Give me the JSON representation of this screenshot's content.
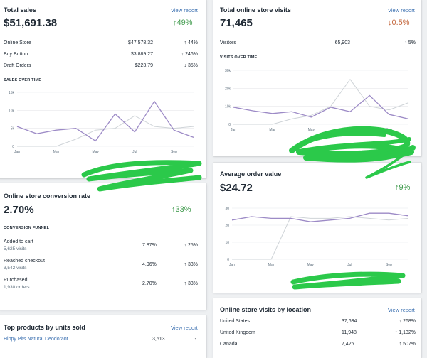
{
  "colors": {
    "primary": "#9c8ac6",
    "comparison": "#cfd4d8",
    "positive": "#3f9a4c",
    "negative": "#c4673d",
    "link": "#3a6fb0"
  },
  "total_sales": {
    "title": "Total sales",
    "link": "View report",
    "value": "$51,691.38",
    "delta": "↑49%",
    "rows": [
      {
        "label": "Online Store",
        "value": "$47,578.32",
        "delta": "↑ 44%"
      },
      {
        "label": "Buy Button",
        "value": "$3,889.27",
        "delta": "↑ 246%"
      },
      {
        "label": "Draft Orders",
        "value": "$223.79",
        "delta": "↓ 35%"
      }
    ],
    "chart_label": "SALES OVER TIME"
  },
  "online_visits": {
    "title": "Total online store visits",
    "link": "View report",
    "value": "71,465",
    "delta": "↓0.5%",
    "rows": [
      {
        "label": "Visitors",
        "value": "65,903",
        "delta": "↑ 5%"
      }
    ],
    "chart_label": "VISITS OVER TIME"
  },
  "conversion": {
    "title": "Online store conversion rate",
    "value": "2.70%",
    "delta": "↑33%",
    "funnel_label": "CONVERSION FUNNEL",
    "rows": [
      {
        "label": "Added to cart",
        "sub": "5,625 visits",
        "value": "7.87%",
        "delta": "↑ 25%"
      },
      {
        "label": "Reached checkout",
        "sub": "3,542 visits",
        "value": "4.96%",
        "delta": "↑ 33%"
      },
      {
        "label": "Purchased",
        "sub": "1,930 orders",
        "value": "2.70%",
        "delta": "↑ 33%"
      }
    ]
  },
  "aov": {
    "title": "Average order value",
    "value": "$24.72",
    "delta": "↑9%"
  },
  "top_products": {
    "title": "Top products by units sold",
    "link": "View report",
    "rows": [
      {
        "label": "Hippy Pits Natural Deodorant",
        "value": "3,513",
        "delta": "-"
      }
    ]
  },
  "location": {
    "title": "Online store visits by location",
    "link": "View report",
    "rows": [
      {
        "label": "United States",
        "value": "37,634",
        "delta": "↑ 268%"
      },
      {
        "label": "United Kingdom",
        "value": "11,948",
        "delta": "↑ 1,132%"
      },
      {
        "label": "Canada",
        "value": "7,426",
        "delta": "↑ 507%"
      }
    ]
  },
  "chart_data": [
    {
      "type": "line",
      "x": [
        "Jan",
        "Feb",
        "Mar",
        "Apr",
        "May",
        "Jun",
        "Jul",
        "Aug",
        "Sep",
        "Oct"
      ],
      "ylim": [
        0,
        15000
      ],
      "yticks": [
        "0",
        "5k",
        "10k",
        "15k"
      ],
      "xticks": [
        "Jan",
        "Mar",
        "May",
        "Jul",
        "Sep"
      ],
      "series": [
        {
          "values": [
            5500,
            3500,
            4500,
            5000,
            1500,
            9000,
            4000,
            12500,
            4500,
            2500
          ]
        },
        {
          "values": [
            0,
            0,
            0,
            2000,
            4500,
            5000,
            8500,
            5500,
            5000,
            5500
          ]
        }
      ]
    },
    {
      "type": "line",
      "x": [
        "Jan",
        "Feb",
        "Mar",
        "Apr",
        "May",
        "Jun",
        "Jul",
        "Aug",
        "Sep",
        "Oct"
      ],
      "ylim": [
        0,
        30000
      ],
      "yticks": [
        "0",
        "10k",
        "20k",
        "30k"
      ],
      "xticks": [
        "Jan",
        "Mar",
        "May",
        "Jul",
        "Sep"
      ],
      "series": [
        {
          "values": [
            9500,
            7500,
            6000,
            7000,
            4000,
            9500,
            7000,
            16000,
            5500,
            3000
          ]
        },
        {
          "values": [
            0,
            0,
            0,
            3000,
            5000,
            10000,
            25000,
            10000,
            8000,
            12000
          ]
        }
      ]
    },
    {
      "type": "line",
      "x": [
        "Jan",
        "Feb",
        "Mar",
        "Apr",
        "May",
        "Jun",
        "Jul",
        "Aug",
        "Sep",
        "Oct"
      ],
      "ylim": [
        0,
        30
      ],
      "yticks": [
        "0",
        "10",
        "20",
        "30"
      ],
      "xticks": [
        "Jan",
        "Mar",
        "May",
        "Jul",
        "Sep"
      ],
      "series": [
        {
          "values": [
            23,
            25,
            24,
            24,
            22,
            23,
            24,
            27,
            27,
            25.5
          ]
        },
        {
          "values": [
            0,
            0,
            0,
            25,
            24,
            24,
            25,
            24,
            23,
            24
          ]
        }
      ]
    }
  ]
}
